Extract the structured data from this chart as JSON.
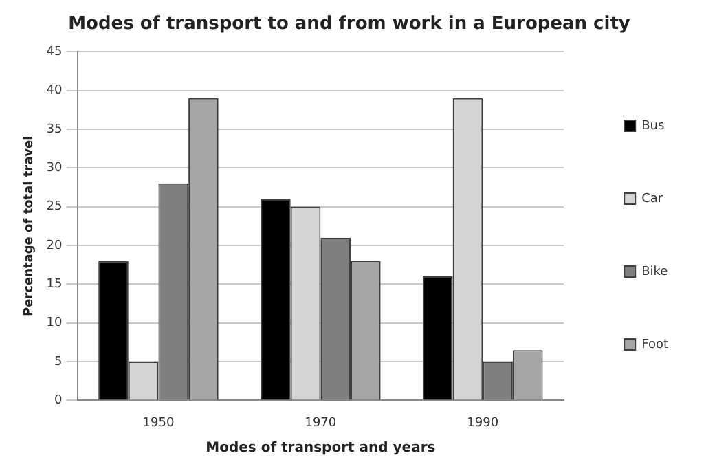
{
  "chart_data": {
    "type": "bar",
    "title": "Modes of transport to and from work in a European city",
    "xlabel": "Modes of transport and years",
    "ylabel": "Percentage of total travel",
    "categories": [
      "1950",
      "1970",
      "1990"
    ],
    "series": [
      {
        "name": "Bus",
        "color": "#000000",
        "values": [
          18,
          26,
          16
        ]
      },
      {
        "name": "Car",
        "color": "#d4d4d4",
        "values": [
          5,
          25,
          39
        ]
      },
      {
        "name": "Bike",
        "color": "#7f7f7f",
        "values": [
          28,
          21,
          5
        ]
      },
      {
        "name": "Foot",
        "color": "#a6a6a6",
        "values": [
          39,
          18,
          6.5
        ]
      }
    ],
    "ylim": [
      0,
      45
    ],
    "yticks": [
      0,
      5,
      10,
      15,
      20,
      25,
      30,
      35,
      40,
      45
    ],
    "grid": "y",
    "legend": "right"
  }
}
